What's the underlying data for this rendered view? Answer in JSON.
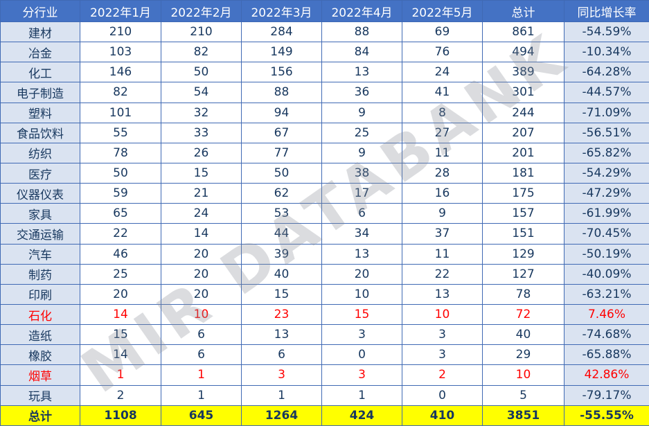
{
  "watermark": "MIR DATABANK",
  "colors": {
    "header_bg": "#4472C4",
    "header_text": "#FFFFFF",
    "label_column_bg": "#DAE3F1",
    "body_text": "#17375E",
    "highlight_text": "#FF0000",
    "total_row_bg": "#FFFF00",
    "border": "#3F69B4"
  },
  "chart_data": {
    "type": "table",
    "title": "",
    "headers": [
      "分行业",
      "2022年1月",
      "2022年2月",
      "2022年3月",
      "2022年4月",
      "2022年5月",
      "总计",
      "同比增长率"
    ],
    "rows": [
      {
        "label": "建材",
        "values": [
          210,
          210,
          284,
          88,
          69,
          861
        ],
        "growth": "-54.59%",
        "style": "normal"
      },
      {
        "label": "冶金",
        "values": [
          103,
          82,
          149,
          84,
          76,
          494
        ],
        "growth": "-10.34%",
        "style": "normal"
      },
      {
        "label": "化工",
        "values": [
          146,
          50,
          156,
          13,
          24,
          389
        ],
        "growth": "-64.28%",
        "style": "normal"
      },
      {
        "label": "电子制造",
        "values": [
          82,
          54,
          88,
          36,
          41,
          301
        ],
        "growth": "-44.57%",
        "style": "normal"
      },
      {
        "label": "塑料",
        "values": [
          101,
          32,
          94,
          9,
          8,
          244
        ],
        "growth": "-71.09%",
        "style": "normal"
      },
      {
        "label": "食品饮料",
        "values": [
          55,
          33,
          67,
          25,
          27,
          207
        ],
        "growth": "-56.51%",
        "style": "normal"
      },
      {
        "label": "纺织",
        "values": [
          78,
          26,
          77,
          9,
          11,
          201
        ],
        "growth": "-65.82%",
        "style": "normal"
      },
      {
        "label": "医疗",
        "values": [
          50,
          15,
          50,
          38,
          28,
          181
        ],
        "growth": "-54.29%",
        "style": "normal"
      },
      {
        "label": "仪器仪表",
        "values": [
          59,
          21,
          62,
          17,
          16,
          175
        ],
        "growth": "-47.29%",
        "style": "normal"
      },
      {
        "label": "家具",
        "values": [
          65,
          24,
          53,
          6,
          9,
          157
        ],
        "growth": "-61.99%",
        "style": "normal"
      },
      {
        "label": "交通运输",
        "values": [
          22,
          14,
          44,
          34,
          37,
          151
        ],
        "growth": "-70.45%",
        "style": "normal"
      },
      {
        "label": "汽车",
        "values": [
          46,
          20,
          39,
          13,
          11,
          129
        ],
        "growth": "-50.19%",
        "style": "normal"
      },
      {
        "label": "制药",
        "values": [
          25,
          20,
          40,
          20,
          22,
          127
        ],
        "growth": "-40.09%",
        "style": "normal"
      },
      {
        "label": "印刷",
        "values": [
          20,
          20,
          15,
          10,
          13,
          78
        ],
        "growth": "-63.21%",
        "style": "normal"
      },
      {
        "label": "石化",
        "values": [
          14,
          10,
          23,
          15,
          10,
          72
        ],
        "growth": "7.46%",
        "style": "red"
      },
      {
        "label": "造纸",
        "values": [
          15,
          6,
          13,
          3,
          3,
          40
        ],
        "growth": "-74.68%",
        "style": "normal"
      },
      {
        "label": "橡胶",
        "values": [
          14,
          6,
          6,
          0,
          3,
          29
        ],
        "growth": "-65.88%",
        "style": "normal"
      },
      {
        "label": "烟草",
        "values": [
          1,
          1,
          3,
          3,
          2,
          10
        ],
        "growth": "42.86%",
        "style": "red"
      },
      {
        "label": "玩具",
        "values": [
          2,
          1,
          1,
          1,
          0,
          5
        ],
        "growth": "-79.17%",
        "style": "normal"
      },
      {
        "label": "总计",
        "values": [
          1108,
          645,
          1264,
          424,
          410,
          3851
        ],
        "growth": "-55.55%",
        "style": "total"
      }
    ]
  }
}
